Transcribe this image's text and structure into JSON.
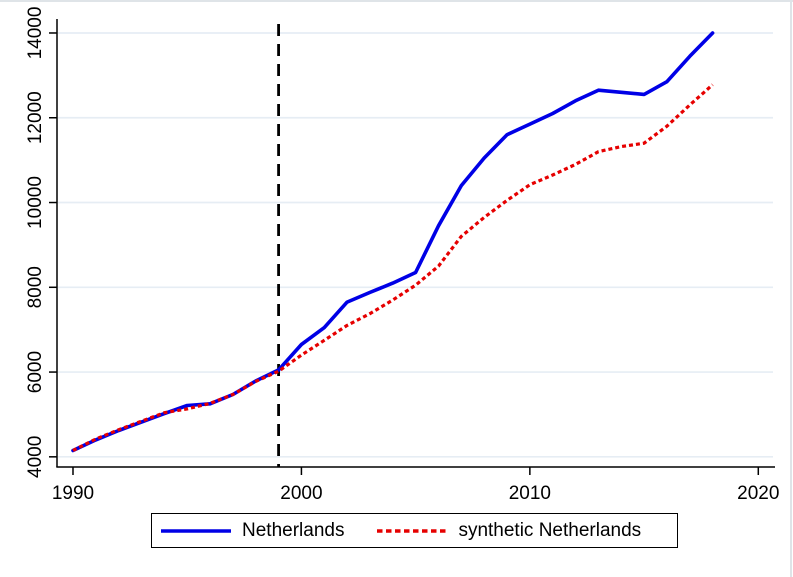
{
  "chart_data": {
    "type": "line",
    "title": "",
    "xlabel": "",
    "ylabel": "",
    "x": [
      1990,
      1991,
      1992,
      1993,
      1994,
      1995,
      1996,
      1997,
      1998,
      1999,
      2000,
      2001,
      2002,
      2003,
      2004,
      2005,
      2006,
      2007,
      2008,
      2009,
      2010,
      2011,
      2012,
      2013,
      2014,
      2015,
      2016,
      2017,
      2018
    ],
    "series": [
      {
        "name": "Netherlands",
        "color": "#0000e6",
        "style": "solid",
        "values": [
          4150,
          4400,
          4620,
          4820,
          5020,
          5210,
          5250,
          5470,
          5790,
          6050,
          6650,
          7050,
          7650,
          7880,
          8100,
          8350,
          9450,
          10400,
          11050,
          11600,
          11850,
          12100,
          12400,
          12650,
          12600,
          12550,
          12850,
          13450,
          14000
        ]
      },
      {
        "name": "synthetic Netherlands",
        "color": "#e60000",
        "style": "dotted",
        "values": [
          4150,
          4420,
          4640,
          4840,
          5040,
          5130,
          5260,
          5470,
          5780,
          6020,
          6400,
          6750,
          7100,
          7380,
          7700,
          8050,
          8500,
          9200,
          9650,
          10050,
          10420,
          10650,
          10900,
          11200,
          11320,
          11400,
          11800,
          12300,
          12780
        ]
      }
    ],
    "treatment_line": {
      "x": 1999,
      "style": "dashed",
      "color": "#000000"
    },
    "xticks": [
      1990,
      2000,
      2010,
      2020
    ],
    "yticks": [
      4000,
      6000,
      8000,
      10000,
      12000,
      14000
    ],
    "xlim": [
      1989.3,
      2020.6
    ],
    "ylim": [
      3760,
      14330
    ],
    "grid": true,
    "gridline_color": "#e6edf4",
    "axis_color": "#000000",
    "legend_position": "bottom-center"
  }
}
